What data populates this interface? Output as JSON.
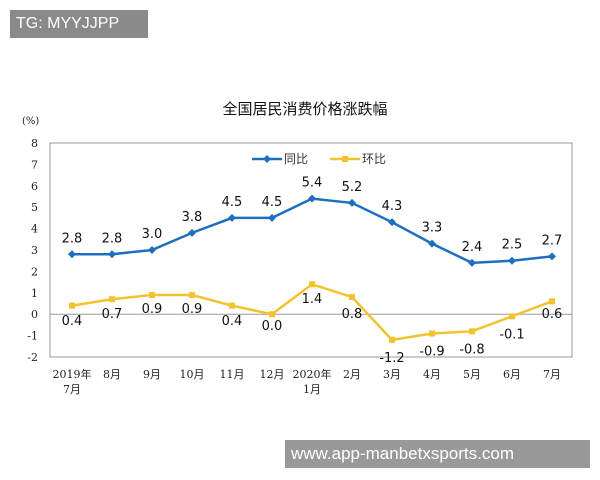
{
  "watermarks": {
    "top": "TG: MYYJJPP",
    "bottom": "www.app-manbetxsports.com"
  },
  "chart_data": {
    "type": "line",
    "title": "全国居民消费价格涨跌幅",
    "ylabel": "(%)",
    "ylim": [
      -2,
      8
    ],
    "yticks": [
      "8",
      "7",
      "6",
      "5",
      "4",
      "3",
      "2",
      "1",
      "0",
      "-1",
      "-2"
    ],
    "categories": [
      "2019年\n7月",
      "8月",
      "9月",
      "10月",
      "11月",
      "12月",
      "2020年\n1月",
      "2月",
      "3月",
      "4月",
      "5月",
      "6月",
      "7月"
    ],
    "legend_position": "top-center",
    "series": [
      {
        "name": "同比",
        "color": "#1f6fc0",
        "marker": "diamond",
        "values": [
          2.8,
          2.8,
          3.0,
          3.8,
          4.5,
          4.5,
          5.4,
          5.2,
          4.3,
          3.3,
          2.4,
          2.5,
          2.7
        ]
      },
      {
        "name": "环比",
        "color": "#f2c32c",
        "marker": "square",
        "values": [
          0.4,
          0.7,
          0.9,
          0.9,
          0.4,
          0.0,
          1.4,
          0.8,
          -1.2,
          -0.9,
          -0.8,
          -0.1,
          0.6
        ]
      }
    ]
  }
}
